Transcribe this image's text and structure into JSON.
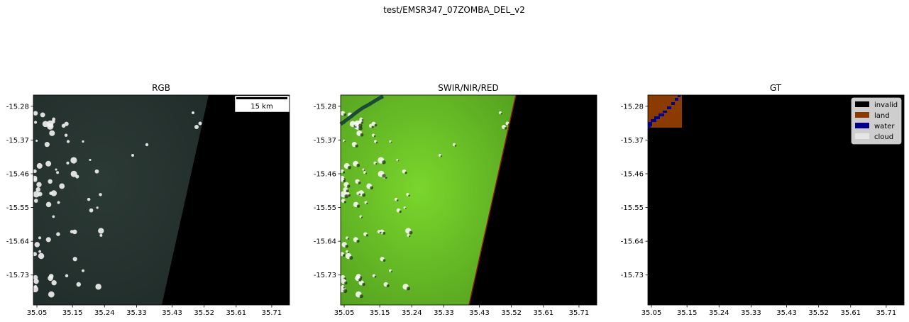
{
  "suptitle": "test/EMSR347_07ZOMBA_DEL_v2",
  "colors": {
    "rgb_land": "#2c3a36",
    "rgb_land_dark": "#1f2b28",
    "swir_land": "#7ad62c",
    "swir_land_dark": "#4f9a1e",
    "cloud": "#f2f2f2",
    "invalid": "#000000",
    "land": "#8b3a00",
    "water": "#00008b",
    "cloud_legend": "#e6e6e6",
    "edge": "#8b1a00"
  },
  "chart_data": [
    {
      "type": "image",
      "name": "rgb",
      "title": "RGB",
      "x_ticks": [
        "35.05",
        "35.15",
        "35.24",
        "35.33",
        "35.43",
        "35.52",
        "35.61",
        "35.71"
      ],
      "y_ticks": [
        "-15.28",
        "-15.37",
        "-15.46",
        "-15.55",
        "-15.64",
        "-15.73"
      ],
      "xlim": [
        35.04,
        35.76
      ],
      "ylim": [
        -15.81,
        -15.25
      ],
      "scalebar": "15 km"
    },
    {
      "type": "image",
      "name": "swir",
      "title": "SWIR/NIR/RED",
      "x_ticks": [
        "35.05",
        "35.15",
        "35.24",
        "35.33",
        "35.43",
        "35.52",
        "35.61",
        "35.71"
      ],
      "y_ticks": [
        "-15.28",
        "-15.37",
        "-15.46",
        "-15.55",
        "-15.64",
        "-15.73"
      ],
      "xlim": [
        35.04,
        35.76
      ],
      "ylim": [
        -15.81,
        -15.25
      ]
    },
    {
      "type": "image",
      "name": "gt",
      "title": "GT",
      "x_ticks": [
        "35.05",
        "35.15",
        "35.24",
        "35.33",
        "35.43",
        "35.52",
        "35.61",
        "35.71"
      ],
      "y_ticks": [
        "-15.28",
        "-15.37",
        "-15.46",
        "-15.55",
        "-15.64",
        "-15.73"
      ],
      "xlim": [
        35.04,
        35.76
      ],
      "ylim": [
        -15.81,
        -15.25
      ],
      "legend": {
        "position": "top-right",
        "entries": [
          {
            "label": "invalid",
            "color": "#000000"
          },
          {
            "label": "land",
            "color": "#8b3a00"
          },
          {
            "label": "water",
            "color": "#00008b"
          },
          {
            "label": "cloud",
            "color": "#e6e6e6"
          }
        ]
      }
    }
  ]
}
